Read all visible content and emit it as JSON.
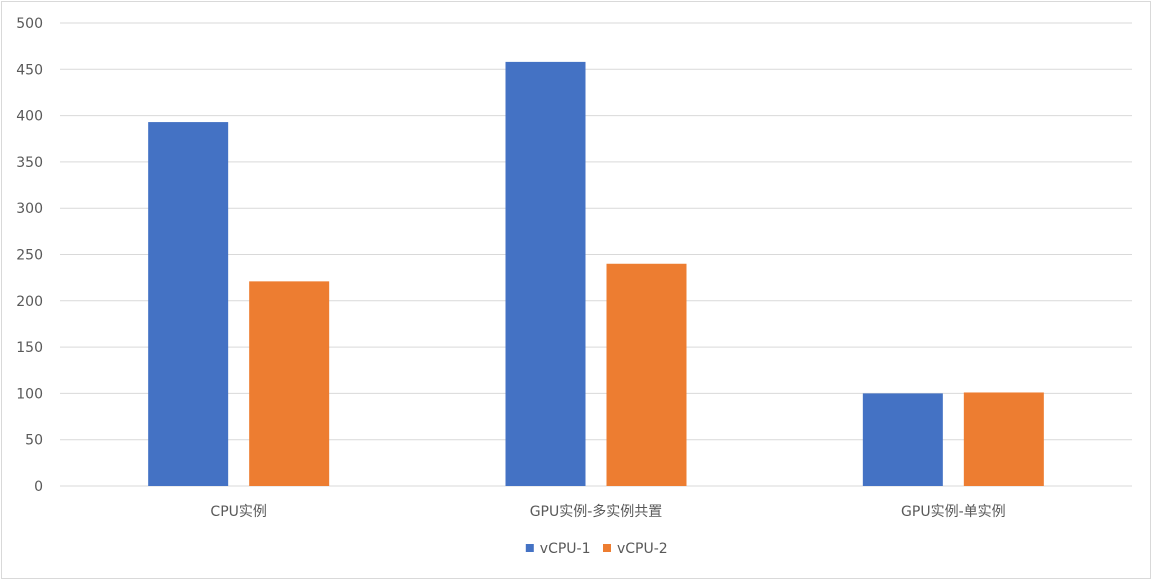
{
  "chart_data": {
    "type": "bar",
    "title": "",
    "xlabel": "",
    "ylabel": "",
    "categories": [
      "CPU实例",
      "GPU实例-多实例共置",
      "GPU实例-单实例"
    ],
    "series": [
      {
        "name": "vCPU-1",
        "color": "#4472C4",
        "values": [
          393,
          458,
          100
        ]
      },
      {
        "name": "vCPU-2",
        "color": "#ED7D31",
        "values": [
          221,
          240,
          101
        ]
      }
    ],
    "ylim": [
      0,
      500
    ],
    "yticks": [
      0,
      50,
      100,
      150,
      200,
      250,
      300,
      350,
      400,
      450,
      500
    ],
    "grid": true,
    "legend_position": "bottom-center"
  }
}
